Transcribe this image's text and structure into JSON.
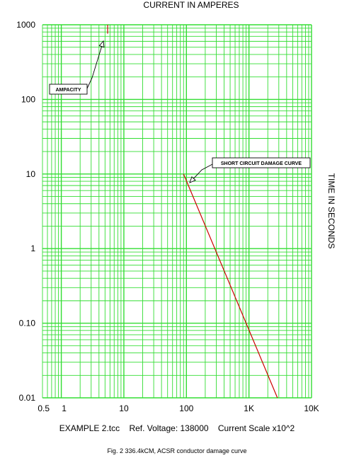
{
  "chart_data": {
    "type": "line",
    "title": "CURRENT IN AMPERES",
    "xlabel": "CURRENT IN AMPERES",
    "ylabel": "TIME IN SECONDS",
    "xscale": "log",
    "yscale": "log",
    "xlim": [
      0.5,
      10000
    ],
    "ylim": [
      0.01,
      1000
    ],
    "x_ticks": [
      {
        "value": 0.5,
        "label": "0.5"
      },
      {
        "value": 1,
        "label": "1"
      },
      {
        "value": 10,
        "label": "10"
      },
      {
        "value": 100,
        "label": "100"
      },
      {
        "value": 1000,
        "label": "1K"
      },
      {
        "value": 10000,
        "label": "10K"
      }
    ],
    "y_ticks": [
      {
        "value": 1000,
        "label": "1000"
      },
      {
        "value": 100,
        "label": "100"
      },
      {
        "value": 10,
        "label": "10"
      },
      {
        "value": 1,
        "label": "1"
      },
      {
        "value": 0.1,
        "label": "0.10"
      },
      {
        "value": 0.01,
        "label": "0.01"
      }
    ],
    "grid": true,
    "grid_color": "#33dd33",
    "series": [
      {
        "name": "AMPACITY",
        "color": "#cc0000",
        "x": [
          5.5,
          5.5
        ],
        "y": [
          1000,
          760
        ]
      },
      {
        "name": "SHORT CIRCUIT DAMAGE CURVE",
        "color": "#cc0000",
        "x": [
          90,
          2850
        ],
        "y": [
          10,
          0.01
        ]
      }
    ],
    "annotations": [
      {
        "text": "AMPACITY",
        "target": [
          5.3,
          900
        ]
      },
      {
        "text": "SHORT CIRCUIT DAMAGE CURVE",
        "target": [
          105,
          7.5
        ]
      }
    ]
  },
  "footer": {
    "info": "EXAMPLE 2.tcc    Ref. Voltage: 138000    Current Scale x10^2",
    "caption": "Fig. 2 336.4kCM, ACSR conductor damage curve"
  }
}
